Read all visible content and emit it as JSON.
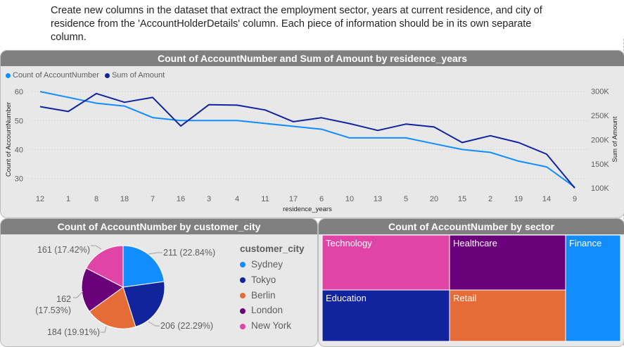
{
  "prompt_text": "Create new columns in the dataset that extract the employment sector, years at current residence, and city of residence from the 'AccountHolderDetails' column. Each piece of information should be in its own separate column.",
  "colors": {
    "count": "#118dff",
    "amount": "#12239e",
    "panel_bg": "#e8e8e8",
    "title_bg": "#808080"
  },
  "chart_data": [
    {
      "type": "line",
      "title": "Count of AccountNumber and Sum of Amount by residence_years",
      "xlabel": "residence_years",
      "ylabel": "Count of AccountNumber",
      "y2label": "Sum of Amount",
      "categories": [
        "12",
        "1",
        "8",
        "18",
        "7",
        "16",
        "3",
        "4",
        "11",
        "17",
        "6",
        "10",
        "13",
        "5",
        "20",
        "15",
        "2",
        "19",
        "14",
        "9"
      ],
      "series": [
        {
          "name": "Count of AccountNumber",
          "axis": "left",
          "values": [
            60,
            58,
            56,
            55,
            51,
            50,
            50,
            50,
            49,
            48,
            47,
            44,
            44,
            44,
            42,
            40,
            39,
            36,
            34,
            27
          ]
        },
        {
          "name": "Sum of Amount",
          "axis": "right",
          "values": [
            268000,
            258000,
            295000,
            277000,
            287000,
            228000,
            272000,
            271000,
            261000,
            237000,
            245000,
            233000,
            219000,
            232000,
            226000,
            194000,
            208000,
            194000,
            170000,
            100000
          ]
        }
      ],
      "ylim": [
        26,
        61
      ],
      "y2lim": [
        96000,
        305000
      ],
      "yticks": [
        "60",
        "50",
        "40",
        "30"
      ],
      "y2ticks": [
        "300K",
        "250K",
        "200K",
        "150K",
        "100K"
      ],
      "legend": "top-left"
    },
    {
      "type": "pie",
      "title": "Count of AccountNumber by customer_city",
      "legend_title": "customer_city",
      "slices": [
        {
          "label": "Sydney",
          "value": 211,
          "text": "211 (22.84%)",
          "color": "#118dff"
        },
        {
          "label": "Tokyo",
          "value": 206,
          "text": "206 (22.29%)",
          "color": "#12239e"
        },
        {
          "label": "Berlin",
          "value": 184,
          "text": "184 (19.91%)",
          "color": "#e66c37"
        },
        {
          "label": "London",
          "value": 162,
          "text_a": "162",
          "text_b": "(17.53%)",
          "color": "#6b007b"
        },
        {
          "label": "New York",
          "value": 161,
          "text": "161 (17.42%)",
          "color": "#e044a7"
        }
      ],
      "legend": "right"
    },
    {
      "type": "treemap",
      "title": "Count of AccountNumber by sector",
      "items": [
        {
          "label": "Technology",
          "color": "#e044a7"
        },
        {
          "label": "Healthcare",
          "color": "#6b007b"
        },
        {
          "label": "Finance",
          "color": "#118dff"
        },
        {
          "label": "Education",
          "color": "#12239e"
        },
        {
          "label": "Retail",
          "color": "#e66c37"
        }
      ]
    }
  ]
}
